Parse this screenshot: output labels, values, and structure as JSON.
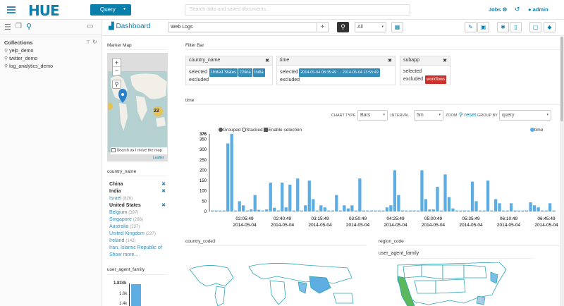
{
  "app": {
    "logo": "HUE",
    "query_button": "Query",
    "search_placeholder": "Search data and saved documents...",
    "jobs": "Jobs",
    "user": "admin"
  },
  "sidebar": {
    "title": "Collections",
    "items": [
      "yelp_demo",
      "twitter_demo",
      "log_analytics_demo"
    ]
  },
  "dashboard": {
    "title": "Dashboard",
    "collection": "Web Logs",
    "filter_select": "All"
  },
  "marker_map": {
    "title": "Marker Map",
    "cluster_count": "22",
    "checkbox_label": "Search as I move the map",
    "attribution": "Leaflet"
  },
  "country_facet": {
    "title": "country_name",
    "items": [
      {
        "label": "China",
        "count": "",
        "selected": true
      },
      {
        "label": "India",
        "count": "",
        "selected": true
      },
      {
        "label": "Israel",
        "count": "(826)",
        "selected": false
      },
      {
        "label": "United States",
        "count": "",
        "selected": true
      },
      {
        "label": "Belgium",
        "count": "(397)",
        "selected": false
      },
      {
        "label": "Singapore",
        "count": "(286)",
        "selected": false
      },
      {
        "label": "Australia",
        "count": "(237)",
        "selected": false
      },
      {
        "label": "United Kingdom",
        "count": "(227)",
        "selected": false
      },
      {
        "label": "Ireland",
        "count": "(142)",
        "selected": false
      },
      {
        "label": "Iran, Islamic Republic of",
        "count": "",
        "selected": false
      }
    ],
    "show_more": "Show more..."
  },
  "ua_facet": {
    "title": "user_agent_family",
    "ticks": [
      "1.834k",
      "1.6k",
      "1.4k"
    ],
    "value": 1834
  },
  "filter_bar": {
    "title": "Filter Bar",
    "country": {
      "name": "country_name",
      "selected_label": "selected",
      "excluded_label": "excluded",
      "selected": [
        "United States",
        "China",
        "India"
      ]
    },
    "time": {
      "name": "time",
      "selected_label": "selected",
      "excluded_label": "excluded",
      "range": "2014-05-04  08:35:49 → 2014-05-04  13:55:49"
    },
    "subapp": {
      "name": "subapp",
      "selected_label": "selected",
      "excluded_label": "excluded",
      "excluded": [
        "workflows"
      ]
    }
  },
  "time_widget": {
    "title": "time",
    "chart_type_label": "CHART TYPE",
    "chart_type": "Bars",
    "interval_label": "INTERVAL",
    "interval": "5m",
    "zoom_label": "ZOOM",
    "reset": "reset",
    "group_by_label": "GROUP BY",
    "group_by": "query",
    "options": {
      "grouped": "Grouped",
      "stacked": "Stacked",
      "enable_selection": "Enable selection"
    }
  },
  "chart_data": {
    "type": "bar",
    "title": "",
    "legend": [
      "time"
    ],
    "ylim": [
      0,
      376
    ],
    "y_ticks": [
      "376",
      "350",
      "300",
      "250",
      "200",
      "150",
      "100",
      "50",
      "0"
    ],
    "x_ticks": [
      [
        "02:05:49",
        "2014-05-04"
      ],
      [
        "02:40:49",
        "2014-05-04"
      ],
      [
        "03:15:49",
        "2014-05-04"
      ],
      [
        "03:50:49",
        "2014-05-04"
      ],
      [
        "04:25:49",
        "2014-05-04"
      ],
      [
        "05:00:49",
        "2014-05-04"
      ],
      [
        "05:35:49",
        "2014-05-04"
      ],
      [
        "06:10:49",
        "2014-05-04"
      ],
      [
        "06:45:49",
        "2014-05-04"
      ]
    ],
    "values": [
      5,
      5,
      5,
      5,
      330,
      376,
      5,
      50,
      30,
      5,
      10,
      80,
      8,
      5,
      10,
      140,
      18,
      5,
      140,
      20,
      130,
      5,
      160,
      5,
      30,
      150,
      60,
      5,
      30,
      20,
      5,
      5,
      80,
      5,
      30,
      15,
      30,
      5,
      160,
      5,
      5,
      5,
      5,
      5,
      5,
      20,
      30,
      200,
      80,
      5,
      5,
      5,
      5,
      5,
      200,
      60,
      10,
      10,
      120,
      5,
      180,
      70,
      15,
      5,
      5,
      5,
      5,
      145,
      50,
      5,
      5,
      150,
      5,
      60,
      40,
      5,
      5,
      40,
      5,
      5,
      5,
      5,
      45,
      30,
      20,
      5,
      5,
      40,
      5
    ]
  },
  "bottom": {
    "country_code3": "country_code3",
    "region_code": "region_code",
    "user_agent_family": "user_agent_family"
  }
}
